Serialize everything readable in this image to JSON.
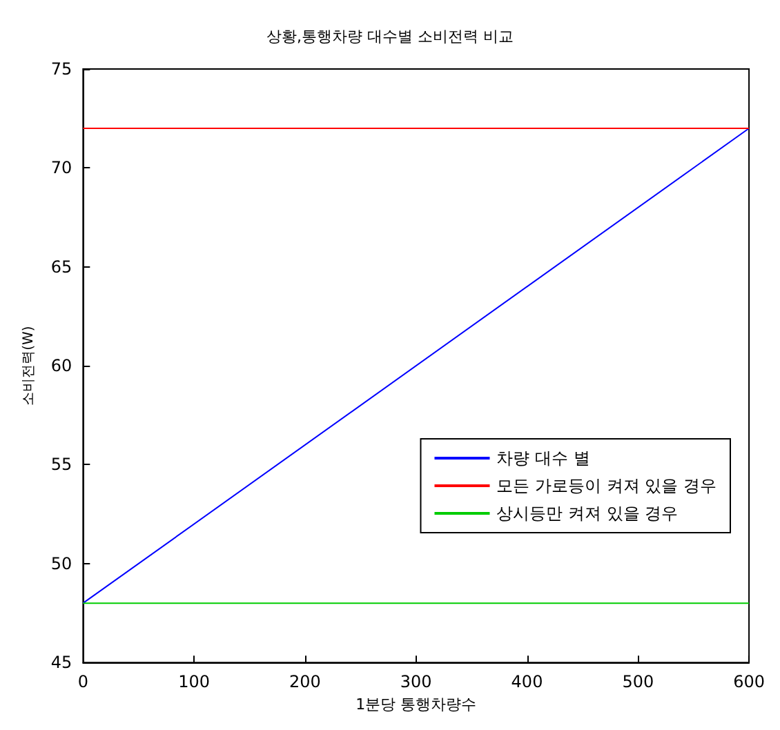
{
  "chart_data": {
    "type": "line",
    "title": "상황,통행차량 대수별 소비전력 비교",
    "xlabel": "1분당 통행차량수",
    "ylabel": "소비전력(W)",
    "xlim": [
      0,
      600
    ],
    "xticks": [
      0,
      100,
      200,
      300,
      400,
      500,
      600
    ],
    "ylim": [
      45,
      75
    ],
    "yticks": [
      45,
      50,
      55,
      60,
      65,
      70,
      75
    ],
    "grid": false,
    "legend": "bottom right",
    "marker": "none",
    "line_style": "solid",
    "x": [
      0,
      600
    ],
    "series": [
      {
        "name": "차량 대수 별",
        "color": "#0000ff",
        "values": [
          48,
          72
        ]
      },
      {
        "name": "모든 가로등이 켜져 있을 경우",
        "color": "#ff0000",
        "values": [
          72,
          72
        ]
      },
      {
        "name": "상시등만 켜져 있을 경우",
        "color": "#00cc00",
        "values": [
          48,
          48
        ]
      }
    ]
  }
}
